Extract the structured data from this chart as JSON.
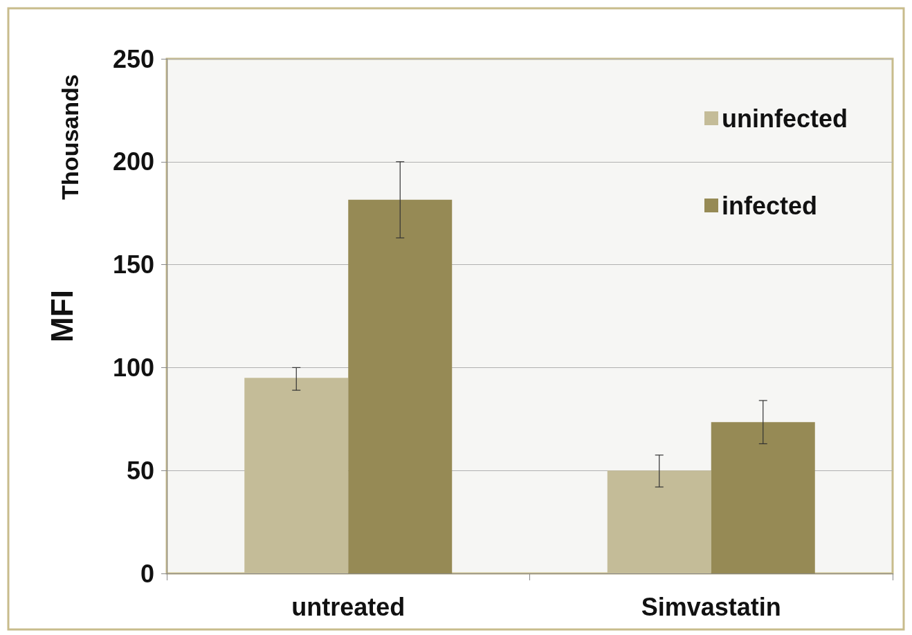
{
  "chart_data": {
    "type": "bar",
    "ylabel": "MFI",
    "annotations": [
      "Thousands"
    ],
    "categories": [
      "untreated",
      "Simvastatin"
    ],
    "series": [
      {
        "name": "uninfected",
        "color": "#c4bc98",
        "values": [
          95,
          50
        ],
        "errors": [
          [
            89,
            100
          ],
          [
            42,
            57.5
          ]
        ]
      },
      {
        "name": "infected",
        "color": "#968a55",
        "values": [
          181.5,
          73.5
        ],
        "errors": [
          [
            163,
            200
          ],
          [
            63,
            84
          ]
        ]
      }
    ],
    "ylim": [
      0,
      250
    ],
    "yticks": [
      0,
      50,
      100,
      150,
      200,
      250
    ],
    "grid": "y",
    "legend": "top right"
  }
}
